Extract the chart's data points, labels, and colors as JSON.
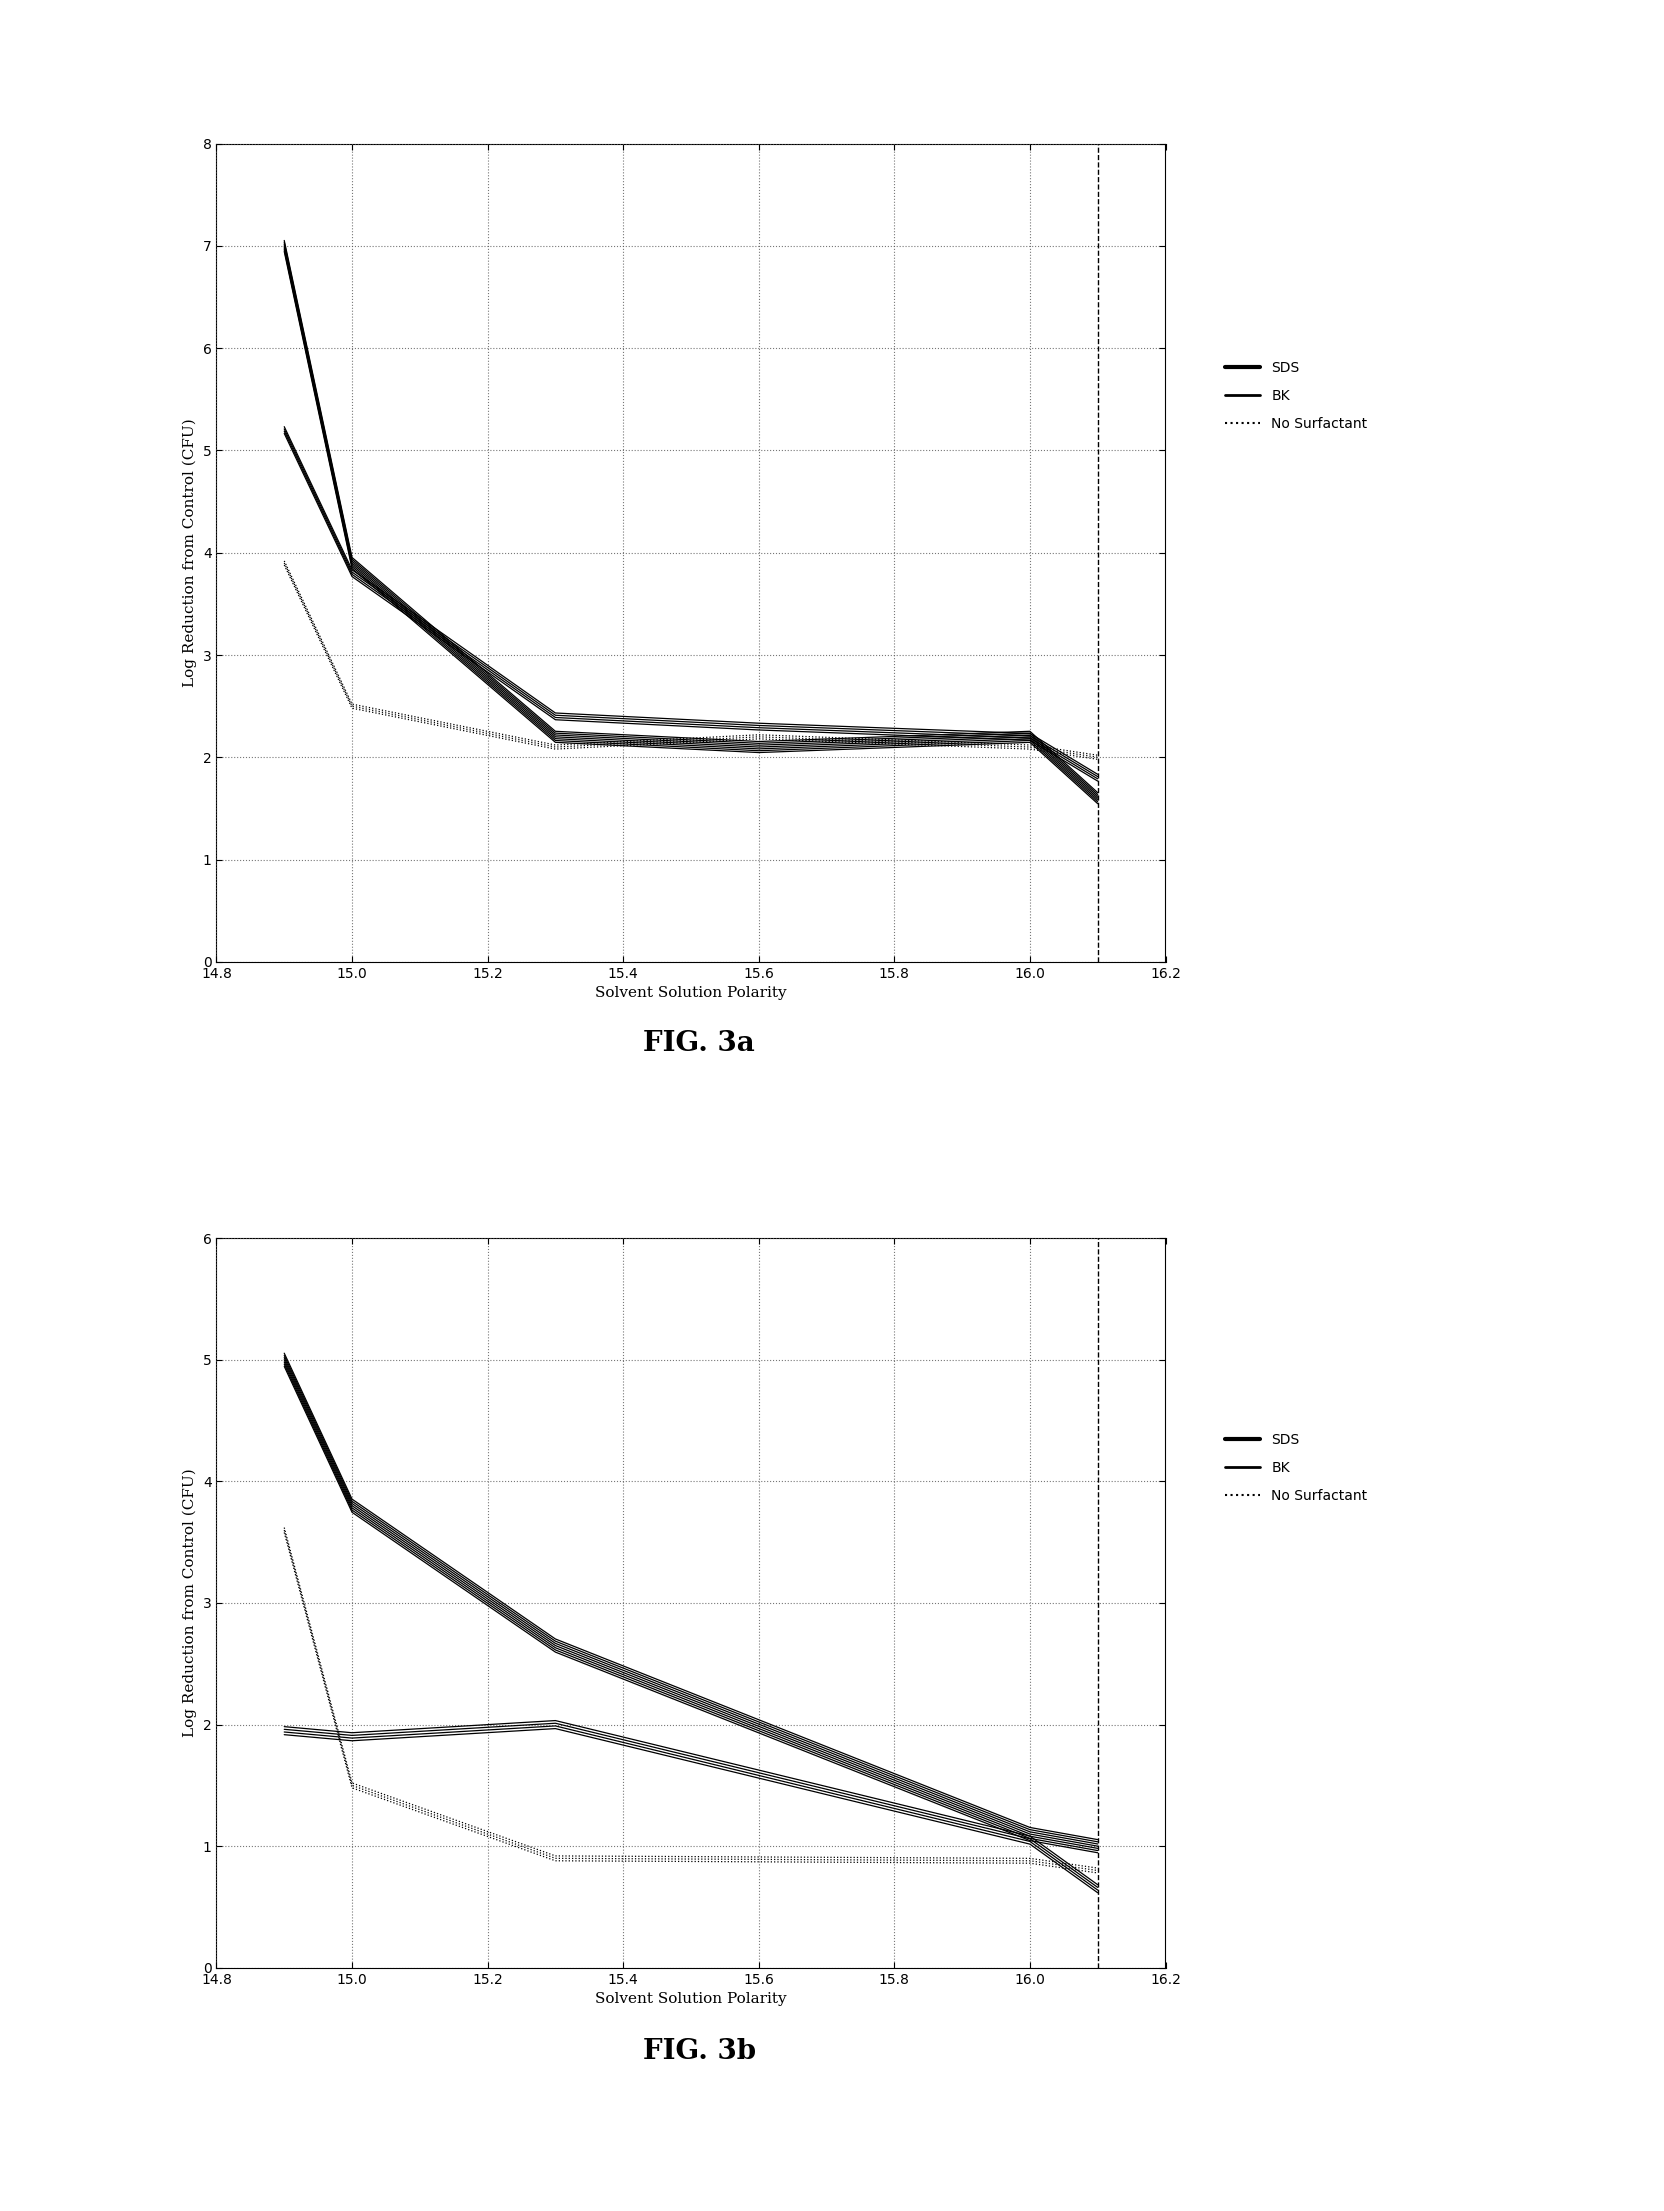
{
  "fig3a": {
    "SDS_x": [
      14.9,
      15.0,
      15.3,
      15.6,
      16.0,
      16.1
    ],
    "SDS_y": [
      7.0,
      3.9,
      2.2,
      2.1,
      2.2,
      1.6
    ],
    "BK_x": [
      14.9,
      15.0,
      15.3,
      15.6,
      16.0,
      16.1
    ],
    "BK_y": [
      5.2,
      3.8,
      2.4,
      2.3,
      2.2,
      1.8
    ],
    "NS_x": [
      14.9,
      15.0,
      15.3,
      15.6,
      16.0,
      16.1
    ],
    "NS_y": [
      3.9,
      2.5,
      2.1,
      2.2,
      2.1,
      2.0
    ],
    "ylim": [
      0,
      8
    ],
    "xlim": [
      14.8,
      16.2
    ],
    "yticks": [
      0,
      1,
      2,
      3,
      4,
      5,
      6,
      7,
      8
    ],
    "xticks": [
      14.8,
      15.0,
      15.2,
      15.4,
      15.6,
      15.8,
      16.0,
      16.2
    ],
    "xlabel": "Solvent Solution Polarity",
    "ylabel": "Log Reduction from Control (CFU)",
    "caption": "FIG. 3a",
    "vline_x": 16.1
  },
  "fig3b": {
    "SDS_x": [
      14.9,
      15.0,
      15.3,
      16.0,
      16.1
    ],
    "SDS_y": [
      5.0,
      3.8,
      2.65,
      1.1,
      1.0
    ],
    "BK_x": [
      14.9,
      15.0,
      15.3,
      16.0,
      16.1
    ],
    "BK_y": [
      1.95,
      1.9,
      2.0,
      1.05,
      0.65
    ],
    "NS_x": [
      14.9,
      15.0,
      15.3,
      16.0,
      16.1
    ],
    "NS_y": [
      3.6,
      1.5,
      0.9,
      0.88,
      0.8
    ],
    "ylim": [
      0,
      6
    ],
    "xlim": [
      14.8,
      16.2
    ],
    "yticks": [
      0,
      1,
      2,
      3,
      4,
      5,
      6
    ],
    "xticks": [
      14.8,
      15.0,
      15.2,
      15.4,
      15.6,
      15.8,
      16.0,
      16.2
    ],
    "xlabel": "Solvent Solution Polarity",
    "ylabel": "Log Reduction from Control (CFU)",
    "caption": "FIG. 3b",
    "vline_x": 16.1
  },
  "line_color": "#000000",
  "background_color": "#ffffff",
  "legend_labels": [
    "SDS",
    "BK",
    "No Surfactant"
  ],
  "fig_width": 16.65,
  "fig_height": 22.11,
  "dpi": 100
}
